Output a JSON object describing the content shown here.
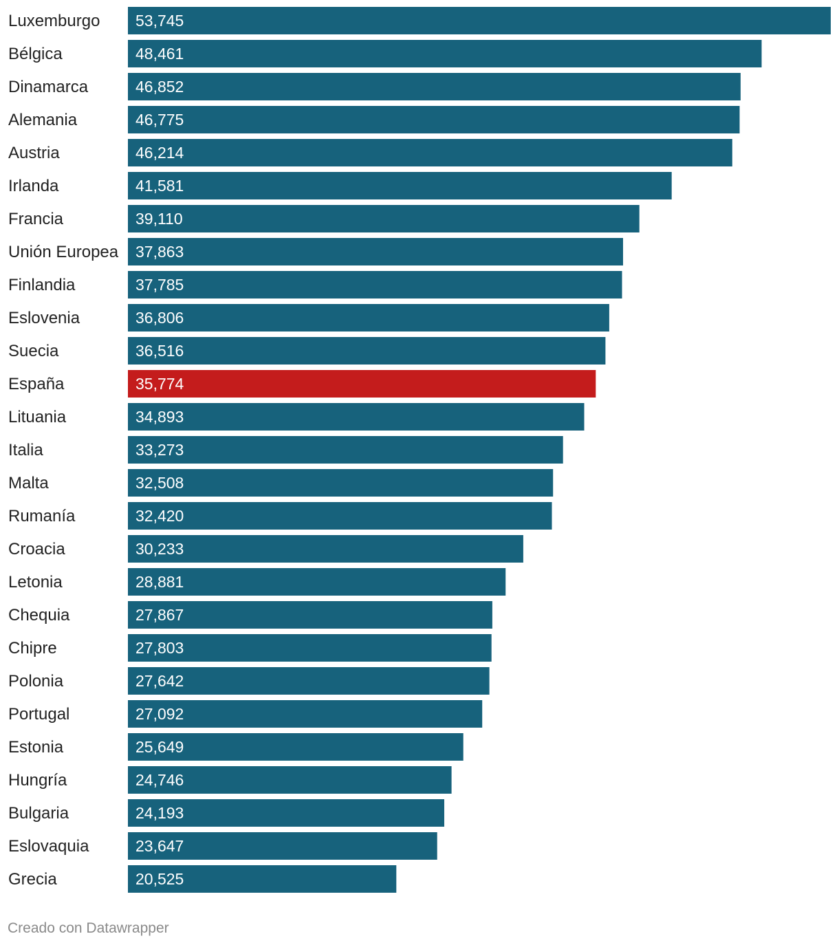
{
  "chart_data": {
    "type": "bar",
    "orientation": "horizontal",
    "title": "",
    "xlabel": "",
    "ylabel": "",
    "grid": false,
    "legend": "none",
    "xlim": [
      0,
      53745
    ],
    "categories": [
      "Luxemburgo",
      "Bélgica",
      "Dinamarca",
      "Alemania",
      "Austria",
      "Irlanda",
      "Francia",
      "Unión Europea",
      "Finlandia",
      "Eslovenia",
      "Suecia",
      "España",
      "Lituania",
      "Italia",
      "Malta",
      "Rumanía",
      "Croacia",
      "Letonia",
      "Chequia",
      "Chipre",
      "Polonia",
      "Portugal",
      "Estonia",
      "Hungría",
      "Bulgaria",
      "Eslovaquia",
      "Grecia"
    ],
    "values": [
      53745,
      48461,
      46852,
      46775,
      46214,
      41581,
      39110,
      37863,
      37785,
      36806,
      36516,
      35774,
      34893,
      33273,
      32508,
      32420,
      30233,
      28881,
      27867,
      27803,
      27642,
      27092,
      25649,
      24746,
      24193,
      23647,
      20525
    ],
    "value_labels": [
      "53,745",
      "48,461",
      "46,852",
      "46,775",
      "46,214",
      "41,581",
      "39,110",
      "37,863",
      "37,785",
      "36,806",
      "36,516",
      "35,774",
      "34,893",
      "33,273",
      "32,508",
      "32,420",
      "30,233",
      "28,881",
      "27,867",
      "27,803",
      "27,642",
      "27,092",
      "25,649",
      "24,746",
      "24,193",
      "23,647",
      "20,525"
    ],
    "highlight": "España"
  },
  "colors": {
    "bar": "#17627c",
    "highlight": "#c41c1c",
    "value_text": "#ffffff",
    "label_text": "#222222",
    "footer_text": "#8a8a8a"
  },
  "footer": {
    "credit": "Creado con Datawrapper"
  }
}
